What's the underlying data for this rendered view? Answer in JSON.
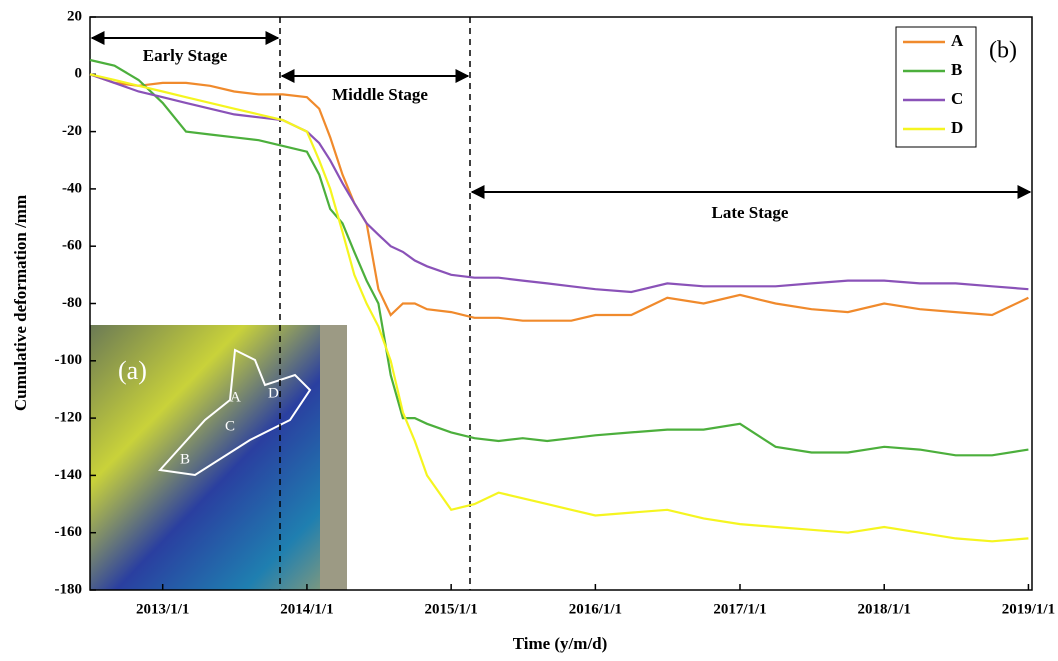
{
  "chart_data": {
    "type": "line",
    "x_label": "Time (y/m/d)",
    "y_label": "Cumulative deformation /mm",
    "annotation": "(b)",
    "stages": [
      "Early Stage",
      "Middle Stage",
      "Late Stage"
    ],
    "inset": {
      "label": "(a)",
      "points": [
        "A",
        "B",
        "C",
        "D"
      ]
    },
    "x": [
      "2012/7/1",
      "2012/9/1",
      "2012/11/1",
      "2013/1/1",
      "2013/3/1",
      "2013/5/1",
      "2013/7/1",
      "2013/9/1",
      "2013/11/1",
      "2014/1/1",
      "2014/2/1",
      "2014/3/1",
      "2014/4/1",
      "2014/5/1",
      "2014/6/1",
      "2014/7/1",
      "2014/8/1",
      "2014/9/1",
      "2014/10/1",
      "2014/11/1",
      "2015/1/1",
      "2015/3/1",
      "2015/5/1",
      "2015/7/1",
      "2015/9/1",
      "2015/11/1",
      "2016/1/1",
      "2016/4/1",
      "2016/7/1",
      "2016/10/1",
      "2017/1/1",
      "2017/4/1",
      "2017/7/1",
      "2017/10/1",
      "2018/1/1",
      "2018/4/1",
      "2018/7/1",
      "2018/10/1",
      "2019/1/1"
    ],
    "series": [
      {
        "name": "A",
        "color": "#f08a2c",
        "values": [
          0,
          -3,
          -4,
          -3,
          -3,
          -4,
          -6,
          -7,
          -7,
          -8,
          -12,
          -22,
          -35,
          -45,
          -52,
          -75,
          -84,
          -80,
          -80,
          -82,
          -83,
          -85,
          -85,
          -86,
          -86,
          -86,
          -84,
          -84,
          -78,
          -80,
          -77,
          -80,
          -82,
          -83,
          -80,
          -82,
          -83,
          -84,
          -78
        ]
      },
      {
        "name": "B",
        "color": "#4caf3c",
        "values": [
          5,
          3,
          -2,
          -10,
          -20,
          -21,
          -22,
          -23,
          -25,
          -27,
          -35,
          -47,
          -52,
          -62,
          -72,
          -80,
          -105,
          -120,
          -120,
          -122,
          -125,
          -127,
          -128,
          -127,
          -128,
          -127,
          -126,
          -125,
          -124,
          -124,
          -122,
          -130,
          -132,
          -132,
          -130,
          -131,
          -133,
          -133,
          -131
        ]
      },
      {
        "name": "C",
        "color": "#8a52b8",
        "values": [
          0,
          -3,
          -6,
          -8,
          -10,
          -12,
          -14,
          -15,
          -16,
          -20,
          -24,
          -30,
          -38,
          -45,
          -52,
          -56,
          -60,
          -62,
          -65,
          -67,
          -70,
          -71,
          -71,
          -72,
          -73,
          -74,
          -75,
          -76,
          -73,
          -74,
          -74,
          -74,
          -73,
          -72,
          -72,
          -73,
          -73,
          -74,
          -75
        ]
      },
      {
        "name": "D",
        "color": "#f5f520",
        "values": [
          0,
          -2,
          -4,
          -6,
          -8,
          -10,
          -12,
          -14,
          -16,
          -20,
          -30,
          -40,
          -55,
          -70,
          -80,
          -88,
          -100,
          -118,
          -128,
          -140,
          -152,
          -150,
          -146,
          -148,
          -150,
          -152,
          -154,
          -153,
          -152,
          -155,
          -157,
          -158,
          -159,
          -160,
          -158,
          -160,
          -162,
          -163,
          -162
        ]
      }
    ],
    "xlim": [
      "2012/7/1",
      "2019/1/10"
    ],
    "xticks": [
      "2013/1/1",
      "2014/1/1",
      "2015/1/1",
      "2016/1/1",
      "2017/1/1",
      "2018/1/1",
      "2019/1/1"
    ],
    "ylim": [
      -180,
      20
    ],
    "yticks": [
      -180,
      -160,
      -140,
      -120,
      -100,
      -80,
      -60,
      -40,
      -20,
      0,
      20
    ],
    "legend": "top-right"
  }
}
